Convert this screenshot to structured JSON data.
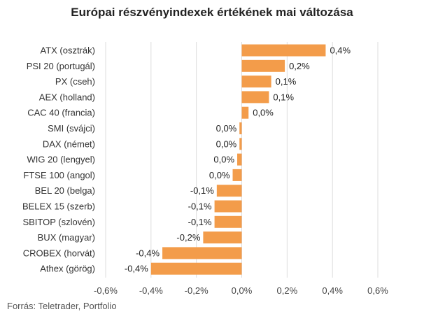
{
  "chart_data": {
    "type": "bar",
    "orientation": "horizontal",
    "title": "Európai részvényindexek értékének mai változása",
    "source": "Forrás: Teletrader, Portfolio",
    "bar_color": "#f39c4a",
    "grid": true,
    "xlim": [
      -0.6,
      0.6
    ],
    "x_ticks": [
      -0.6,
      -0.4,
      -0.2,
      0.0,
      0.2,
      0.4,
      0.6
    ],
    "x_tick_labels": [
      "-0,6%",
      "-0,4%",
      "-0,2%",
      "0,0%",
      "0,2%",
      "0,4%",
      "0,6%"
    ],
    "categories": [
      "ATX (osztrák)",
      "PSI 20 (portugál)",
      "PX (cseh)",
      "AEX (holland)",
      "CAC 40 (francia)",
      "SMI (svájci)",
      "DAX (német)",
      "WIG 20 (lengyel)",
      "FTSE 100 (angol)",
      "BEL 20 (belga)",
      "BELEX 15 (szerb)",
      "SBITOP (szlovén)",
      "BUX (magyar)",
      "CROBEX (horvát)",
      "Athex (görög)"
    ],
    "values": [
      0.37,
      0.19,
      0.13,
      0.12,
      0.03,
      -0.01,
      -0.01,
      -0.02,
      -0.04,
      -0.11,
      -0.12,
      -0.12,
      -0.17,
      -0.35,
      -0.4
    ],
    "value_labels": [
      "0,4%",
      "0,2%",
      "0,1%",
      "0,1%",
      "0,0%",
      "0,0%",
      "0,0%",
      "0,0%",
      "0,0%",
      "-0,1%",
      "-0,1%",
      "-0,1%",
      "-0,2%",
      "-0,4%",
      "-0,4%"
    ]
  }
}
